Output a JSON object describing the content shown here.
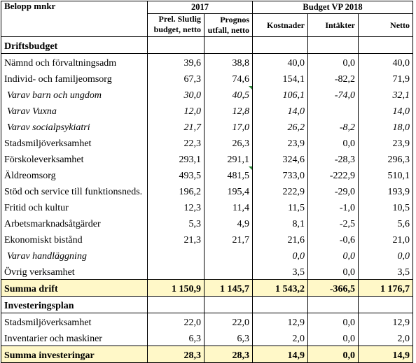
{
  "header": {
    "title": "Belopp mnkr",
    "group_2017": "2017",
    "group_budget": "Budget VP 2018",
    "columns": [
      "Prel. Slutlig budget, netto",
      "Prognos utfall, netto",
      "Kostnader",
      "Intäkter",
      "Netto"
    ],
    "col1_line1": "Prel. Slutlig",
    "col1_line2": "budget, netto",
    "col2_line1": "Prognos",
    "col2_line2": "utfall, netto"
  },
  "sections": {
    "drift": "Driftsbudget",
    "invest": "Investeringsplan"
  },
  "drift_rows": [
    {
      "label": "Nämnd och förvaltningsadm",
      "v": [
        "39,6",
        "38,8",
        "40,0",
        "0,0",
        "40,0"
      ]
    },
    {
      "label": "Individ- och familjeomsorg",
      "v": [
        "67,3",
        "74,6",
        "154,1",
        "-82,2",
        "71,9"
      ]
    },
    {
      "label": "Varav barn och ungdom",
      "v": [
        "30,0",
        "40,5",
        "106,1",
        "-74,0",
        "32,1"
      ]
    },
    {
      "label": "Varav Vuxna",
      "v": [
        "12,0",
        "12,8",
        "14,0",
        "",
        "14,0"
      ]
    },
    {
      "label": "Varav socialpsykiatri",
      "v": [
        "21,7",
        "17,0",
        "26,2",
        "-8,2",
        "18,0"
      ]
    },
    {
      "label": "Stadsmiljöverksamhet",
      "v": [
        "22,3",
        "26,3",
        "23,9",
        "0,0",
        "23,9"
      ]
    },
    {
      "label": "Förskoleverksamhet",
      "v": [
        "293,1",
        "291,1",
        "324,6",
        "-28,3",
        "296,3"
      ]
    },
    {
      "label": "Äldreomsorg",
      "v": [
        "493,5",
        "481,5",
        "733,0",
        "-222,9",
        "510,1"
      ]
    },
    {
      "label": "Stöd och service till funktionsneds.",
      "v": [
        "196,2",
        "195,4",
        "222,9",
        "-29,0",
        "193,9"
      ]
    },
    {
      "label": "Fritid och kultur",
      "v": [
        "12,3",
        "11,4",
        "11,5",
        "-1,0",
        "10,5"
      ]
    },
    {
      "label": "Arbetsmarknadsåtgärder",
      "v": [
        "5,3",
        "4,9",
        "8,1",
        "-2,5",
        "5,6"
      ]
    },
    {
      "label": "Ekonomiskt bistånd",
      "v": [
        "21,3",
        "21,7",
        "21,6",
        "-0,6",
        "21,0"
      ]
    },
    {
      "label": "Varav handläggning",
      "v": [
        "",
        "",
        "0,0",
        "0,0",
        "0,0"
      ]
    },
    {
      "label": "Övrig verksamhet",
      "v": [
        "",
        "",
        "3,5",
        "0,0",
        "3,5"
      ]
    }
  ],
  "drift_sum": {
    "label": "Summa drift",
    "v": [
      "1 150,9",
      "1 145,7",
      "1 543,2",
      "-366,5",
      "1 176,7"
    ]
  },
  "invest_rows": [
    {
      "label": "Stadsmiljöverksamhet",
      "v": [
        "22,0",
        "22,0",
        "12,9",
        "0,0",
        "12,9"
      ]
    },
    {
      "label": "Inventarier och maskiner",
      "v": [
        "6,3",
        "6,3",
        "2,0",
        "0,0",
        "2,0"
      ]
    }
  ],
  "invest_sum": {
    "label": "Summa investeringar",
    "v": [
      "28,3",
      "28,3",
      "14,9",
      "0,0",
      "14,9"
    ]
  },
  "colors": {
    "sum_fill": "#fff8c8",
    "comment_marker": "#2e8b3a"
  }
}
